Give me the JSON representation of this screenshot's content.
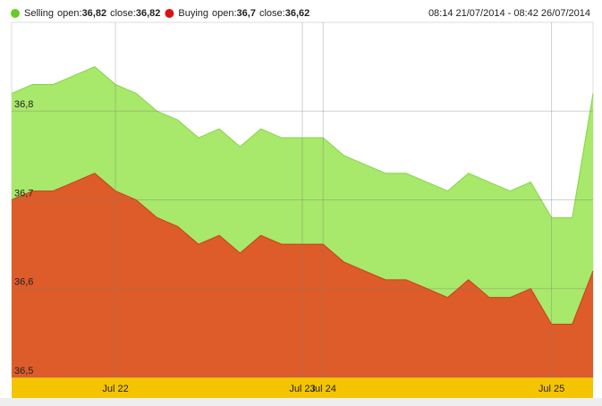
{
  "chart_data": {
    "type": "area",
    "date_range": "08:14 21/07/2014 - 08:42 26/07/2014",
    "legend_open_text": "open:",
    "legend_close_text": "close:",
    "categories": [
      null,
      null,
      null,
      null,
      null,
      "Jul 22",
      null,
      null,
      null,
      null,
      null,
      null,
      null,
      null,
      "Jul 23",
      "Jul 24",
      null,
      null,
      null,
      null,
      null,
      null,
      null,
      null,
      null,
      null,
      "Jul 25",
      null,
      null
    ],
    "series": [
      {
        "name": "Selling",
        "open": "36,82",
        "close": "36,82",
        "color": "#a8e86a",
        "line_color": "#86d44a",
        "dot_color": "#66cc22",
        "values": [
          36.82,
          36.83,
          36.83,
          36.84,
          36.85,
          36.83,
          36.82,
          36.8,
          36.79,
          36.77,
          36.78,
          36.76,
          36.78,
          36.77,
          36.77,
          36.77,
          36.75,
          36.74,
          36.73,
          36.73,
          36.72,
          36.71,
          36.73,
          36.72,
          36.71,
          36.72,
          36.68,
          36.68,
          36.82
        ]
      },
      {
        "name": "Buying",
        "open": "36,7",
        "close": "36,62",
        "color": "#de5c2a",
        "line_color": "#c8401a",
        "dot_color": "#dd1111",
        "values": [
          36.7,
          36.71,
          36.71,
          36.72,
          36.73,
          36.71,
          36.7,
          36.68,
          36.67,
          36.65,
          36.66,
          36.64,
          36.66,
          36.65,
          36.65,
          36.65,
          36.63,
          36.62,
          36.61,
          36.61,
          36.6,
          36.59,
          36.61,
          36.59,
          36.59,
          36.6,
          36.56,
          36.56,
          36.62
        ]
      }
    ],
    "ylim": [
      36.5,
      36.9
    ],
    "yticks": [
      {
        "value": 36.5,
        "label": "36,5"
      },
      {
        "value": 36.6,
        "label": "36,6"
      },
      {
        "value": 36.7,
        "label": "36,7"
      },
      {
        "value": 36.8,
        "label": "36,8"
      }
    ],
    "grid": true
  }
}
